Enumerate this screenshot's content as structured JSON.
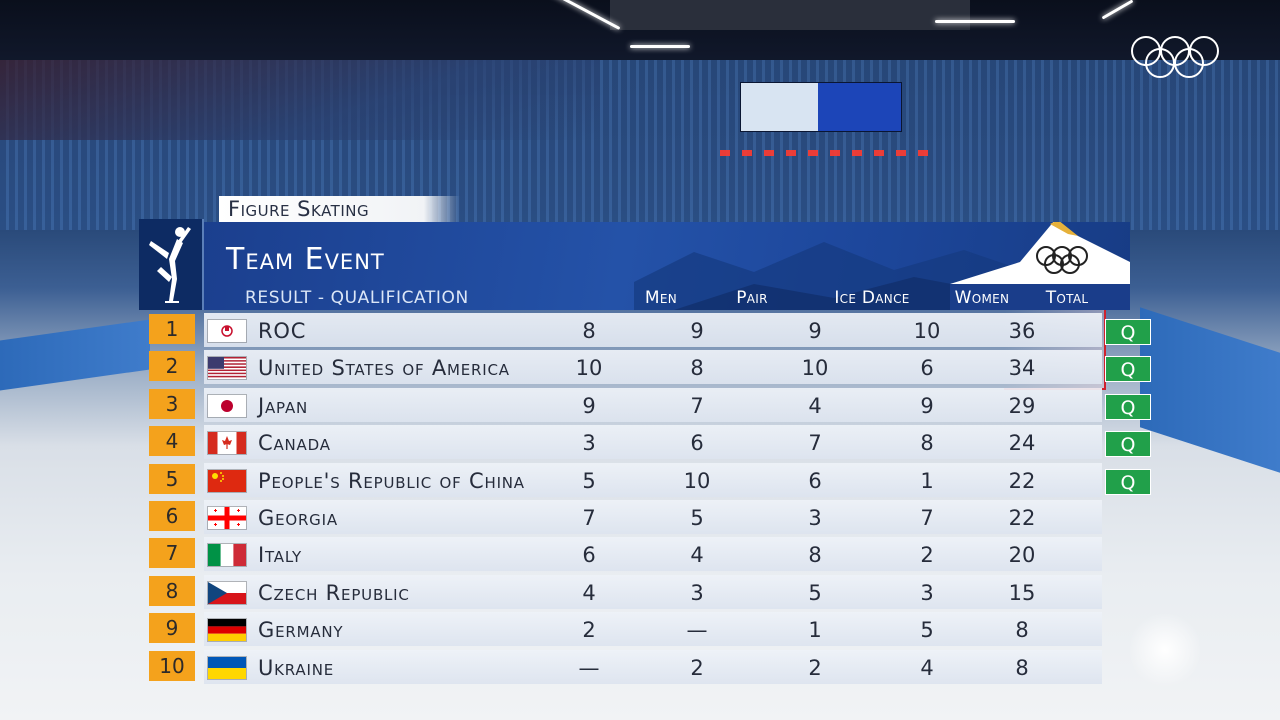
{
  "broadcast": {
    "category": "Figure Skating",
    "title": "Team Event",
    "subtitle": "RESULT - QUALIFICATION",
    "columns": {
      "men": "Men",
      "pair": "Pair",
      "ice_dance": "Ice Dance",
      "women": "Women",
      "total": "Total"
    },
    "qualified_mark": "Q",
    "rows": [
      {
        "rank": "1",
        "country": "ROC",
        "flag": "roc-flag",
        "men": "8",
        "pair": "9",
        "ice_dance": "9",
        "women": "10",
        "total": "36",
        "q": "Q"
      },
      {
        "rank": "2",
        "country": "United States of America",
        "flag": "usa-flag",
        "men": "10",
        "pair": "8",
        "ice_dance": "10",
        "women": "6",
        "total": "34",
        "q": "Q"
      },
      {
        "rank": "3",
        "country": "Japan",
        "flag": "japan-flag",
        "men": "9",
        "pair": "7",
        "ice_dance": "4",
        "women": "9",
        "total": "29",
        "q": "Q"
      },
      {
        "rank": "4",
        "country": "Canada",
        "flag": "canada-flag",
        "men": "3",
        "pair": "6",
        "ice_dance": "7",
        "women": "8",
        "total": "24",
        "q": "Q"
      },
      {
        "rank": "5",
        "country": "People's Republic of China",
        "flag": "china-flag",
        "men": "5",
        "pair": "10",
        "ice_dance": "6",
        "women": "1",
        "total": "22",
        "q": "Q"
      },
      {
        "rank": "6",
        "country": "Georgia",
        "flag": "georgia-flag",
        "men": "7",
        "pair": "5",
        "ice_dance": "3",
        "women": "7",
        "total": "22",
        "q": ""
      },
      {
        "rank": "7",
        "country": "Italy",
        "flag": "italy-flag",
        "men": "6",
        "pair": "4",
        "ice_dance": "8",
        "women": "2",
        "total": "20",
        "q": ""
      },
      {
        "rank": "8",
        "country": "Czech Republic",
        "flag": "czech-flag",
        "men": "4",
        "pair": "3",
        "ice_dance": "5",
        "women": "3",
        "total": "15",
        "q": ""
      },
      {
        "rank": "9",
        "country": "Germany",
        "flag": "germany-flag",
        "men": "2",
        "pair": "—",
        "ice_dance": "1",
        "women": "5",
        "total": "8",
        "q": ""
      },
      {
        "rank": "10",
        "country": "Ukraine",
        "flag": "ukraine-flag",
        "men": "—",
        "pair": "2",
        "ice_dance": "2",
        "women": "4",
        "total": "8",
        "q": ""
      }
    ],
    "colors": {
      "rank_badge": "#f4a21c",
      "qualified": "#21a04a",
      "header_blue": "#1d479c",
      "highlight": "#d0212d"
    }
  }
}
